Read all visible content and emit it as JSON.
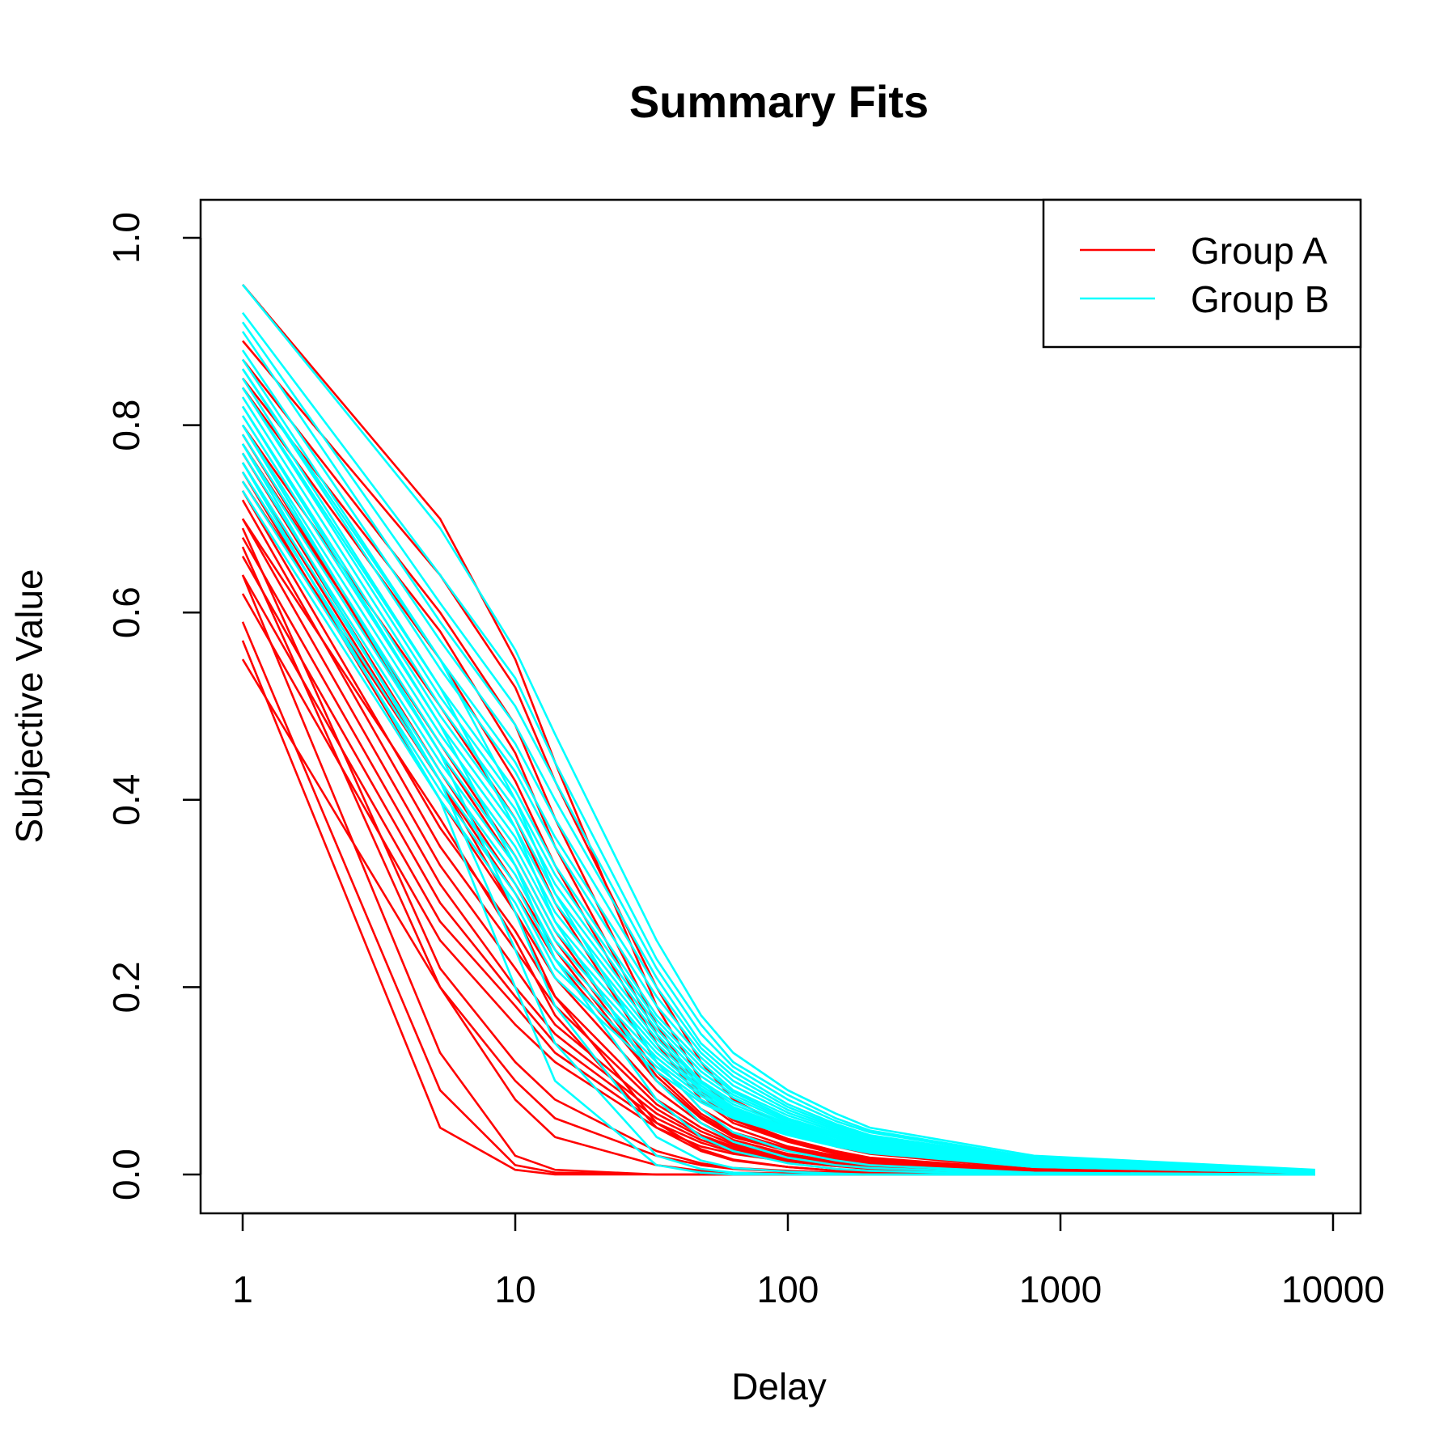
{
  "chart_data": {
    "type": "line",
    "title": "Summary Fits",
    "xlabel": "Delay",
    "ylabel": "Subjective Value",
    "x_scale": "log",
    "xlim": [
      1,
      10000
    ],
    "ylim": [
      0,
      1
    ],
    "x_ticks": [
      "1",
      "10",
      "100",
      "1000",
      "10000"
    ],
    "y_ticks": [
      "0.0",
      "0.2",
      "0.4",
      "0.6",
      "0.8",
      "1.0"
    ],
    "legend": {
      "placement": "top-right"
    },
    "x": [
      1,
      5.3,
      10,
      14,
      33,
      48,
      63,
      100,
      150,
      200,
      800,
      8600
    ],
    "series": [
      {
        "name": "Group A",
        "color": "#ff0000",
        "lines": [
          [
            0.95,
            0.7,
            0.55,
            0.44,
            0.18,
            0.1,
            0.07,
            0.045,
            0.03,
            0.022,
            0.006,
            0.001
          ],
          [
            0.89,
            0.64,
            0.52,
            0.42,
            0.2,
            0.12,
            0.08,
            0.05,
            0.032,
            0.024,
            0.007,
            0.001
          ],
          [
            0.87,
            0.6,
            0.48,
            0.38,
            0.16,
            0.09,
            0.06,
            0.038,
            0.025,
            0.018,
            0.005,
            0.001
          ],
          [
            0.84,
            0.55,
            0.42,
            0.33,
            0.14,
            0.08,
            0.055,
            0.035,
            0.022,
            0.016,
            0.004,
            0.001
          ],
          [
            0.8,
            0.5,
            0.38,
            0.29,
            0.12,
            0.07,
            0.05,
            0.03,
            0.02,
            0.015,
            0.004,
            0.001
          ],
          [
            0.78,
            0.46,
            0.34,
            0.26,
            0.11,
            0.065,
            0.045,
            0.028,
            0.018,
            0.013,
            0.003,
            0.0
          ],
          [
            0.76,
            0.42,
            0.3,
            0.23,
            0.1,
            0.06,
            0.04,
            0.025,
            0.016,
            0.012,
            0.003,
            0.0
          ],
          [
            0.75,
            0.4,
            0.28,
            0.21,
            0.09,
            0.055,
            0.037,
            0.022,
            0.014,
            0.011,
            0.003,
            0.0
          ],
          [
            0.73,
            0.37,
            0.26,
            0.19,
            0.08,
            0.05,
            0.034,
            0.02,
            0.013,
            0.01,
            0.002,
            0.0
          ],
          [
            0.72,
            0.35,
            0.24,
            0.18,
            0.075,
            0.046,
            0.032,
            0.019,
            0.012,
            0.009,
            0.002,
            0.0
          ],
          [
            0.7,
            0.33,
            0.22,
            0.16,
            0.07,
            0.042,
            0.03,
            0.018,
            0.011,
            0.008,
            0.002,
            0.0
          ],
          [
            0.68,
            0.31,
            0.2,
            0.15,
            0.065,
            0.04,
            0.028,
            0.017,
            0.011,
            0.008,
            0.002,
            0.0
          ],
          [
            0.66,
            0.29,
            0.19,
            0.14,
            0.06,
            0.037,
            0.026,
            0.016,
            0.01,
            0.007,
            0.002,
            0.0
          ],
          [
            0.64,
            0.27,
            0.18,
            0.13,
            0.055,
            0.034,
            0.024,
            0.015,
            0.009,
            0.007,
            0.002,
            0.0
          ],
          [
            0.62,
            0.25,
            0.16,
            0.12,
            0.05,
            0.03,
            0.022,
            0.014,
            0.009,
            0.006,
            0.001,
            0.0
          ],
          [
            0.7,
            0.38,
            0.25,
            0.17,
            0.05,
            0.025,
            0.015,
            0.008,
            0.004,
            0.003,
            0.0,
            0.0
          ],
          [
            0.74,
            0.42,
            0.28,
            0.19,
            0.055,
            0.027,
            0.016,
            0.008,
            0.004,
            0.003,
            0.0,
            0.0
          ],
          [
            0.67,
            0.2,
            0.1,
            0.06,
            0.02,
            0.01,
            0.006,
            0.003,
            0.002,
            0.001,
            0.0,
            0.0
          ],
          [
            0.69,
            0.22,
            0.12,
            0.08,
            0.025,
            0.012,
            0.007,
            0.004,
            0.002,
            0.001,
            0.0,
            0.0
          ],
          [
            0.64,
            0.13,
            0.02,
            0.005,
            0.0,
            0.0,
            0.0,
            0.0,
            0.0,
            0.0,
            0.0,
            0.0
          ],
          [
            0.59,
            0.09,
            0.01,
            0.002,
            0.0,
            0.0,
            0.0,
            0.0,
            0.0,
            0.0,
            0.0,
            0.0
          ],
          [
            0.57,
            0.05,
            0.005,
            0.0,
            0.0,
            0.0,
            0.0,
            0.0,
            0.0,
            0.0,
            0.0,
            0.0
          ],
          [
            0.55,
            0.2,
            0.08,
            0.04,
            0.01,
            0.004,
            0.002,
            0.001,
            0.0,
            0.0,
            0.0,
            0.0
          ],
          [
            0.79,
            0.45,
            0.33,
            0.25,
            0.105,
            0.062,
            0.043,
            0.027,
            0.017,
            0.012,
            0.003,
            0.0
          ],
          [
            0.77,
            0.43,
            0.31,
            0.24,
            0.1,
            0.06,
            0.041,
            0.026,
            0.016,
            0.012,
            0.003,
            0.0
          ],
          [
            0.85,
            0.58,
            0.45,
            0.35,
            0.15,
            0.085,
            0.058,
            0.036,
            0.023,
            0.017,
            0.005,
            0.001
          ]
        ]
      },
      {
        "name": "Group B",
        "color": "#00ffff",
        "lines": [
          [
            0.95,
            0.69,
            0.56,
            0.47,
            0.25,
            0.17,
            0.13,
            0.09,
            0.065,
            0.05,
            0.02,
            0.005
          ],
          [
            0.92,
            0.64,
            0.53,
            0.44,
            0.23,
            0.16,
            0.12,
            0.085,
            0.06,
            0.047,
            0.018,
            0.004
          ],
          [
            0.91,
            0.61,
            0.5,
            0.42,
            0.22,
            0.15,
            0.115,
            0.08,
            0.057,
            0.045,
            0.017,
            0.004
          ],
          [
            0.9,
            0.59,
            0.48,
            0.4,
            0.21,
            0.14,
            0.11,
            0.075,
            0.054,
            0.042,
            0.016,
            0.004
          ],
          [
            0.88,
            0.57,
            0.46,
            0.38,
            0.2,
            0.135,
            0.105,
            0.072,
            0.052,
            0.04,
            0.015,
            0.003
          ],
          [
            0.87,
            0.55,
            0.44,
            0.36,
            0.19,
            0.13,
            0.1,
            0.069,
            0.05,
            0.038,
            0.014,
            0.003
          ],
          [
            0.86,
            0.54,
            0.43,
            0.35,
            0.18,
            0.125,
            0.095,
            0.066,
            0.048,
            0.036,
            0.013,
            0.003
          ],
          [
            0.85,
            0.52,
            0.41,
            0.33,
            0.17,
            0.12,
            0.09,
            0.063,
            0.046,
            0.035,
            0.013,
            0.003
          ],
          [
            0.84,
            0.51,
            0.4,
            0.32,
            0.165,
            0.115,
            0.088,
            0.06,
            0.044,
            0.034,
            0.012,
            0.003
          ],
          [
            0.83,
            0.5,
            0.39,
            0.31,
            0.16,
            0.11,
            0.085,
            0.058,
            0.042,
            0.032,
            0.012,
            0.003
          ],
          [
            0.82,
            0.49,
            0.38,
            0.3,
            0.155,
            0.105,
            0.082,
            0.056,
            0.04,
            0.031,
            0.011,
            0.002
          ],
          [
            0.81,
            0.48,
            0.37,
            0.29,
            0.15,
            0.1,
            0.078,
            0.054,
            0.039,
            0.03,
            0.011,
            0.002
          ],
          [
            0.8,
            0.47,
            0.36,
            0.28,
            0.145,
            0.098,
            0.075,
            0.052,
            0.037,
            0.029,
            0.01,
            0.002
          ],
          [
            0.79,
            0.46,
            0.35,
            0.27,
            0.14,
            0.095,
            0.072,
            0.05,
            0.036,
            0.028,
            0.01,
            0.002
          ],
          [
            0.78,
            0.45,
            0.34,
            0.26,
            0.135,
            0.092,
            0.07,
            0.048,
            0.035,
            0.027,
            0.01,
            0.002
          ],
          [
            0.77,
            0.44,
            0.33,
            0.25,
            0.13,
            0.09,
            0.068,
            0.046,
            0.034,
            0.026,
            0.009,
            0.002
          ],
          [
            0.76,
            0.43,
            0.32,
            0.24,
            0.125,
            0.087,
            0.066,
            0.045,
            0.033,
            0.025,
            0.009,
            0.002
          ],
          [
            0.75,
            0.42,
            0.31,
            0.23,
            0.12,
            0.084,
            0.064,
            0.044,
            0.032,
            0.024,
            0.009,
            0.002
          ],
          [
            0.74,
            0.41,
            0.3,
            0.22,
            0.115,
            0.08,
            0.062,
            0.043,
            0.031,
            0.024,
            0.008,
            0.002
          ],
          [
            0.73,
            0.4,
            0.29,
            0.21,
            0.11,
            0.077,
            0.06,
            0.042,
            0.03,
            0.023,
            0.008,
            0.002
          ],
          [
            0.86,
            0.55,
            0.4,
            0.3,
            0.12,
            0.07,
            0.045,
            0.025,
            0.015,
            0.01,
            0.002,
            0.0
          ],
          [
            0.84,
            0.52,
            0.37,
            0.27,
            0.1,
            0.055,
            0.035,
            0.018,
            0.01,
            0.007,
            0.001,
            0.0
          ],
          [
            0.82,
            0.48,
            0.33,
            0.23,
            0.08,
            0.04,
            0.025,
            0.012,
            0.006,
            0.004,
            0.0,
            0.0
          ],
          [
            0.8,
            0.45,
            0.28,
            0.18,
            0.04,
            0.015,
            0.007,
            0.003,
            0.001,
            0.0,
            0.0,
            0.0
          ],
          [
            0.78,
            0.42,
            0.24,
            0.14,
            0.02,
            0.006,
            0.002,
            0.0,
            0.0,
            0.0,
            0.0,
            0.0
          ],
          [
            0.76,
            0.4,
            0.2,
            0.1,
            0.01,
            0.002,
            0.0,
            0.0,
            0.0,
            0.0,
            0.0,
            0.0
          ]
        ]
      }
    ]
  }
}
